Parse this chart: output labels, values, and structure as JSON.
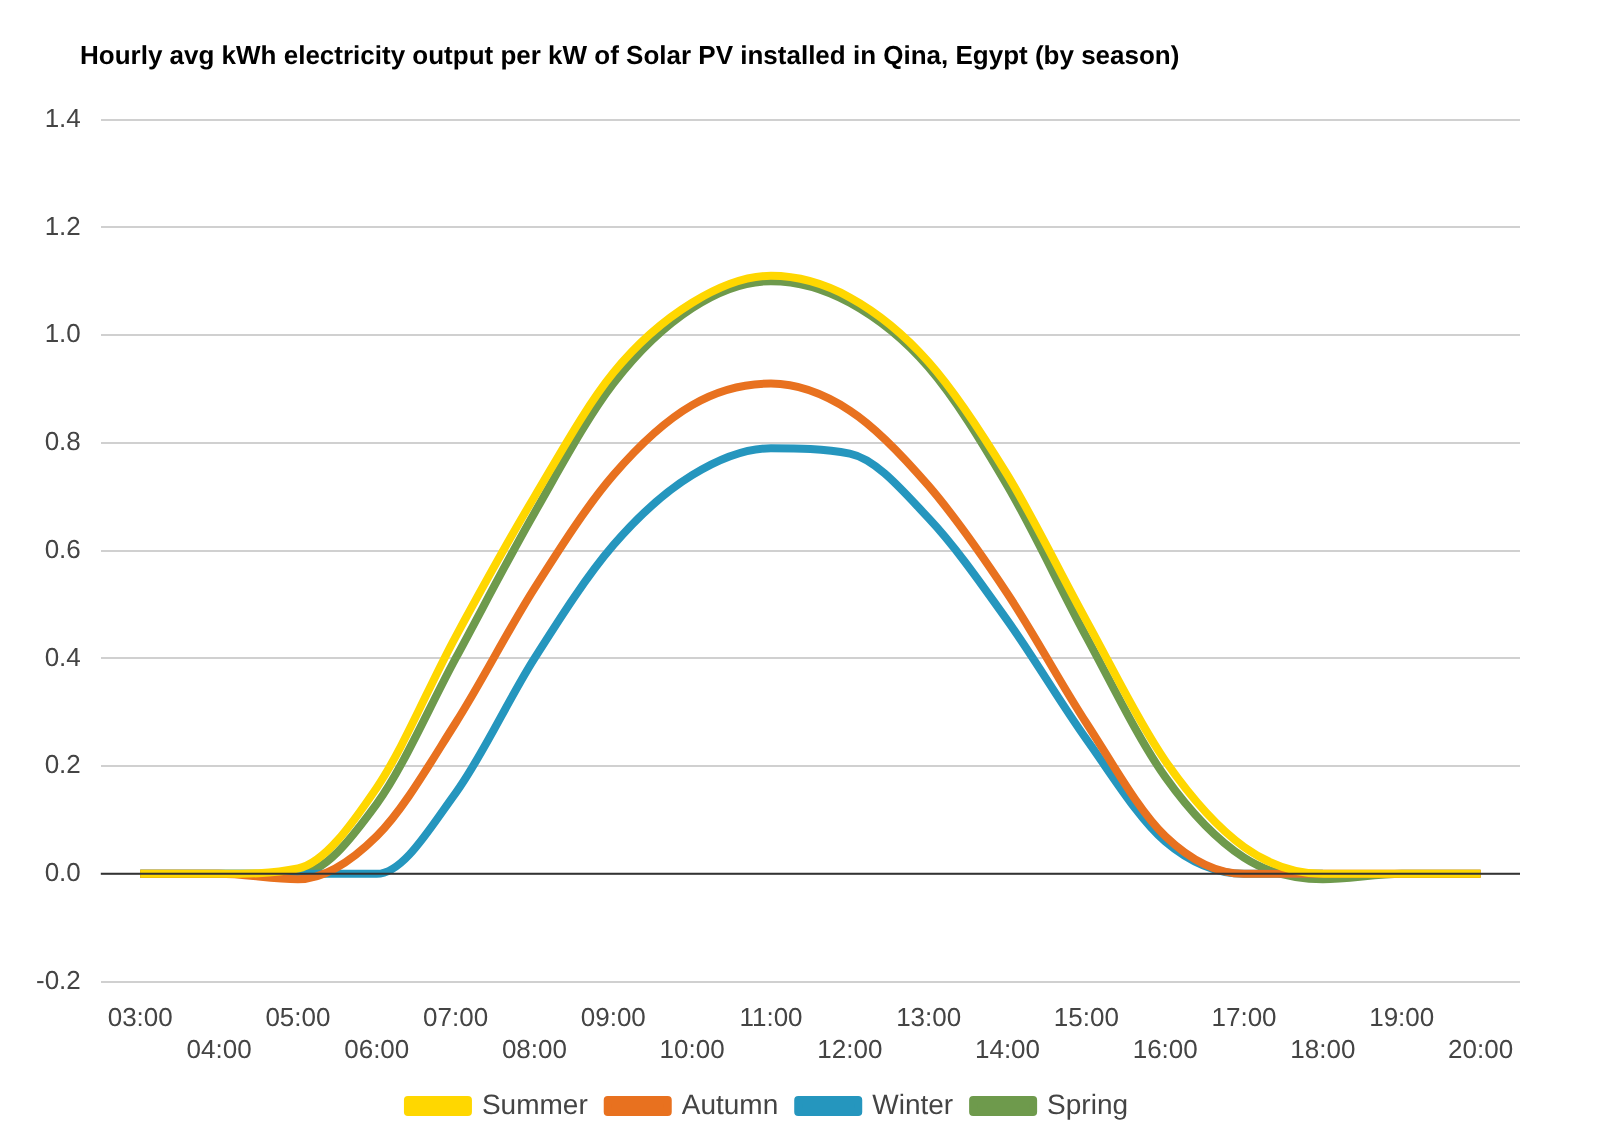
{
  "chart_data": {
    "type": "line",
    "title": "Hourly avg kWh electricity output per kW of Solar PV installed in Qina, Egypt (by season)",
    "categories": [
      "03:00",
      "04:00",
      "05:00",
      "06:00",
      "07:00",
      "08:00",
      "09:00",
      "10:00",
      "11:00",
      "12:00",
      "13:00",
      "14:00",
      "15:00",
      "16:00",
      "17:00",
      "18:00",
      "19:00",
      "20:00"
    ],
    "series": [
      {
        "name": "Summer",
        "color": "#ffd700",
        "values": [
          0,
          0,
          0.01,
          0.16,
          0.44,
          0.7,
          0.93,
          1.06,
          1.11,
          1.07,
          0.95,
          0.74,
          0.47,
          0.21,
          0.05,
          0,
          0,
          0
        ]
      },
      {
        "name": "Autumn",
        "color": "#e8711f",
        "values": [
          0,
          0,
          -0.01,
          0.07,
          0.28,
          0.53,
          0.74,
          0.87,
          0.91,
          0.86,
          0.72,
          0.52,
          0.28,
          0.07,
          0,
          0,
          0,
          0
        ]
      },
      {
        "name": "Winter",
        "color": "#2596be",
        "values": [
          0,
          0,
          0,
          0,
          0.15,
          0.4,
          0.61,
          0.74,
          0.79,
          0.78,
          0.66,
          0.47,
          0.25,
          0.06,
          0,
          0,
          null,
          null
        ]
      },
      {
        "name": "Spring",
        "color": "#6e9a4c",
        "values": [
          0,
          0,
          0,
          0.13,
          0.4,
          0.67,
          0.91,
          1.05,
          1.1,
          1.06,
          0.94,
          0.72,
          0.44,
          0.18,
          0.03,
          -0.01,
          0,
          0
        ]
      }
    ],
    "ylim": [
      -0.2,
      1.4
    ],
    "yticks": [
      -0.2,
      {
        "value": 0,
        "label": "0.0"
      },
      0.2,
      0.4,
      0.6,
      0.8,
      {
        "value": 1,
        "label": "1.0"
      },
      1.2,
      1.4
    ],
    "ref_lines": [
      {
        "axis": "y",
        "value": 0,
        "color": "#333333"
      }
    ],
    "grid": "y",
    "legend": "bottom",
    "marker": "none",
    "line_style": "solid"
  }
}
